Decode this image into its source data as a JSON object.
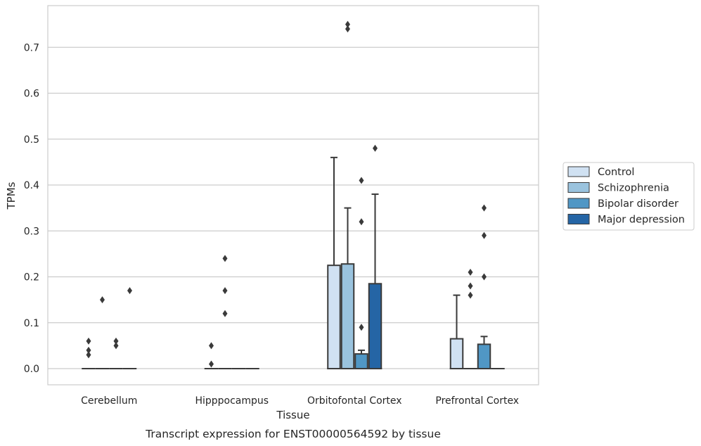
{
  "chart_data": {
    "type": "box",
    "title": "",
    "caption": "Transcript expression for ENST00000564592 by tissue",
    "xlabel": "Tissue",
    "ylabel": "TPMs",
    "ylim": [
      -0.037,
      0.788
    ],
    "yticks": [
      "0.0",
      "0.1",
      "0.2",
      "0.3",
      "0.4",
      "0.5",
      "0.6",
      "0.7"
    ],
    "grid": "horizontal",
    "legend_position": "outside-right",
    "categories": [
      "Cerebellum",
      "Hipppocampus",
      "Orbitofontal Cortex",
      "Prefrontal Cortex"
    ],
    "series": [
      {
        "name": "Control",
        "color": "#d0e1f2",
        "boxes": [
          {
            "q1": 0,
            "median": 0,
            "q3": 0,
            "whislo": 0,
            "whishi": 0,
            "fliers": [
              0.03,
              0.04,
              0.06
            ]
          },
          {
            "q1": 0,
            "median": 0,
            "q3": 0,
            "whislo": 0,
            "whishi": 0,
            "fliers": [
              0.01,
              0.05
            ]
          },
          {
            "q1": 0,
            "median": 0,
            "q3": 0.225,
            "whislo": 0,
            "whishi": 0.46,
            "fliers": []
          },
          {
            "q1": 0,
            "median": 0,
            "q3": 0.065,
            "whislo": 0,
            "whishi": 0.16,
            "fliers": []
          }
        ]
      },
      {
        "name": "Schizophrenia",
        "color": "#9ac3de",
        "boxes": [
          {
            "q1": 0,
            "median": 0,
            "q3": 0,
            "whislo": 0,
            "whishi": 0,
            "fliers": [
              0.15
            ]
          },
          {
            "q1": 0,
            "median": 0,
            "q3": 0,
            "whislo": 0,
            "whishi": 0,
            "fliers": [
              0.12,
              0.17,
              0.24
            ]
          },
          {
            "q1": 0,
            "median": 0,
            "q3": 0.228,
            "whislo": 0,
            "whishi": 0.35,
            "fliers": [
              0.74,
              0.75
            ]
          },
          {
            "q1": 0,
            "median": 0,
            "q3": 0,
            "whislo": 0,
            "whishi": 0,
            "fliers": [
              0.16,
              0.18,
              0.21
            ]
          }
        ]
      },
      {
        "name": "Bipolar disorder",
        "color": "#5097c5",
        "boxes": [
          {
            "q1": 0,
            "median": 0,
            "q3": 0,
            "whislo": 0,
            "whishi": 0,
            "fliers": [
              0.05,
              0.06
            ]
          },
          {
            "q1": 0,
            "median": 0,
            "q3": 0,
            "whislo": 0,
            "whishi": 0,
            "fliers": []
          },
          {
            "q1": 0,
            "median": 0,
            "q3": 0.032,
            "whislo": 0,
            "whishi": 0.04,
            "fliers": [
              0.09,
              0.32,
              0.41
            ]
          },
          {
            "q1": 0,
            "median": 0,
            "q3": 0.053,
            "whislo": 0,
            "whishi": 0.07,
            "fliers": [
              0.2,
              0.29,
              0.35
            ]
          }
        ]
      },
      {
        "name": "Major depression",
        "color": "#2565a5",
        "boxes": [
          {
            "q1": 0,
            "median": 0,
            "q3": 0,
            "whislo": 0,
            "whishi": 0,
            "fliers": [
              0.17
            ]
          },
          {
            "q1": 0,
            "median": 0,
            "q3": 0,
            "whislo": 0,
            "whishi": 0,
            "fliers": []
          },
          {
            "q1": 0,
            "median": 0,
            "q3": 0.185,
            "whislo": 0,
            "whishi": 0.38,
            "fliers": [
              0.48
            ]
          },
          {
            "q1": 0,
            "median": 0,
            "q3": 0,
            "whislo": 0,
            "whishi": 0,
            "fliers": []
          }
        ]
      }
    ]
  },
  "colors": {
    "edge": "#3a3a3a",
    "grid": "#cccccc",
    "axes": "#cccccc"
  }
}
